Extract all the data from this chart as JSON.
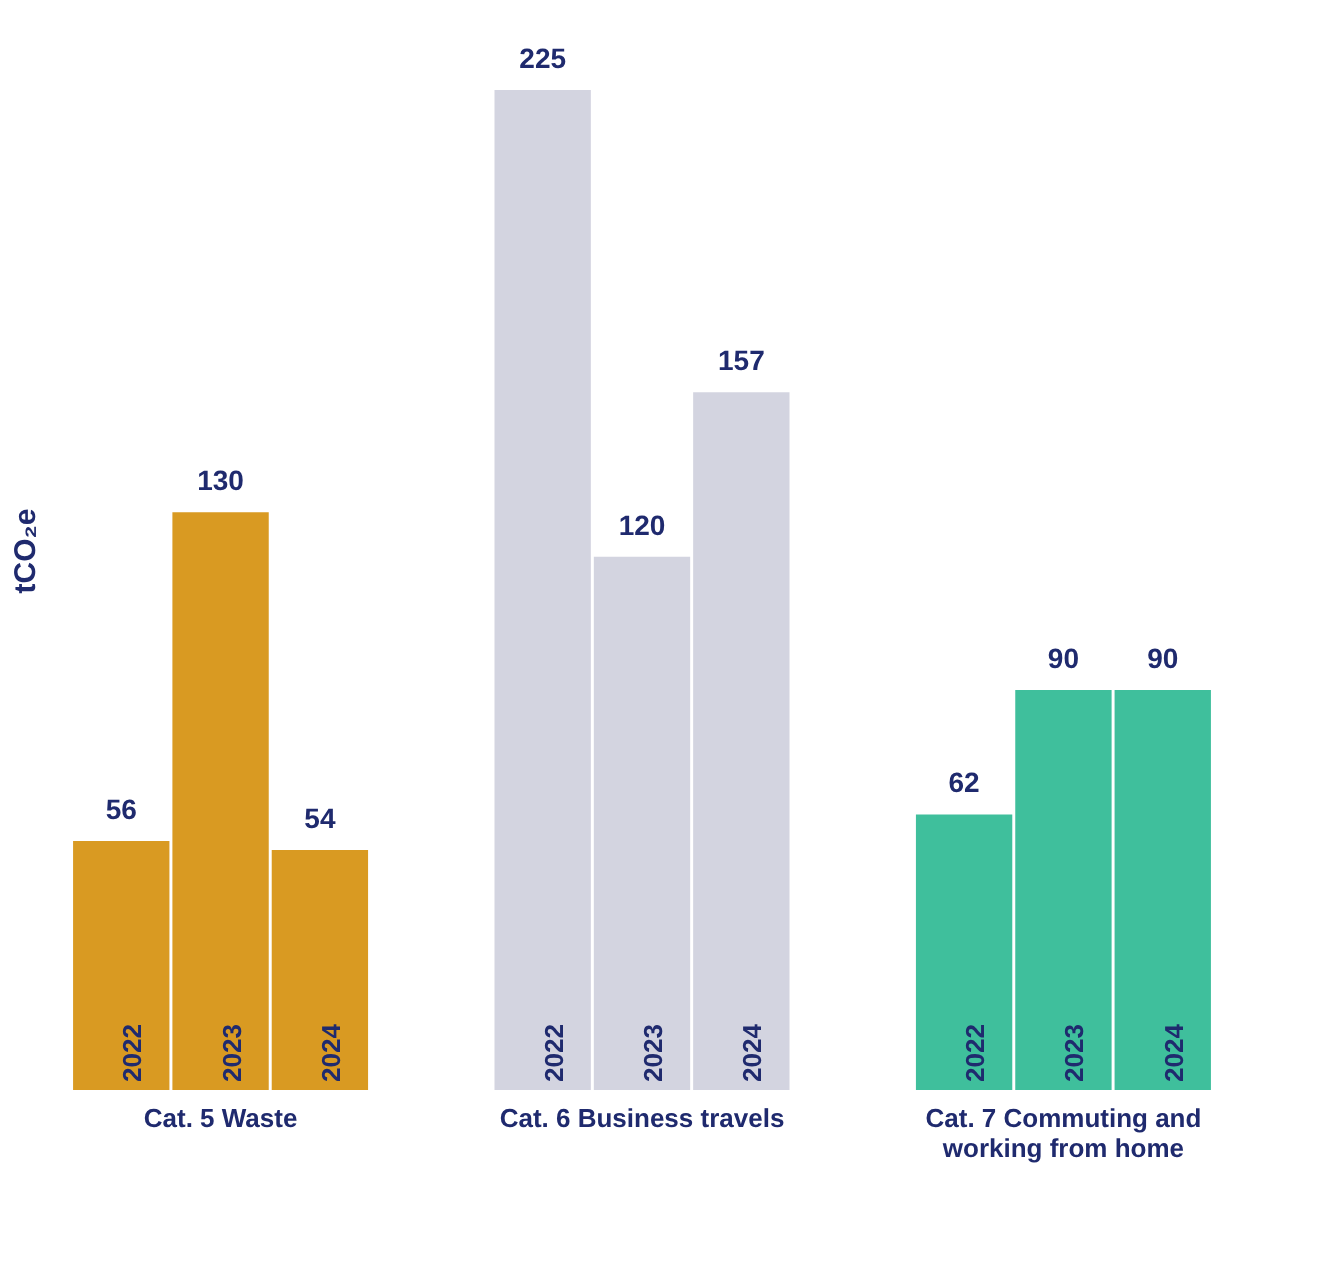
{
  "chart_data": {
    "type": "bar",
    "ylabel": "tCO₂e",
    "categories": [
      "Cat. 5 Waste",
      "Cat. 6 Business travels",
      "Cat. 7 Commuting and working from home"
    ],
    "series": [
      {
        "name": "2022",
        "colors": [
          "#d99a22",
          "#d3d4e0",
          "#3fbf9c"
        ],
        "values": [
          56,
          225,
          62
        ]
      },
      {
        "name": "2023",
        "colors": [
          "#d99a22",
          "#d3d4e0",
          "#3fbf9c"
        ],
        "values": [
          130,
          120,
          90
        ]
      },
      {
        "name": "2024",
        "colors": [
          "#d99a22",
          "#d3d4e0",
          "#3fbf9c"
        ],
        "values": [
          54,
          157,
          90
        ]
      }
    ],
    "data_labels": true
  }
}
